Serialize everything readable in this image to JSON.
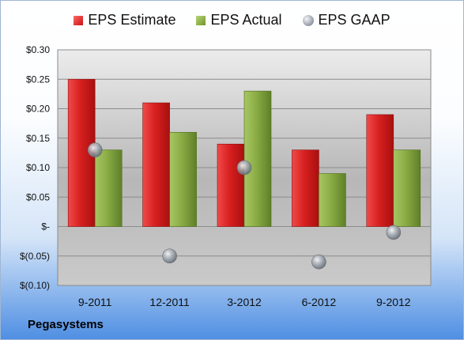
{
  "legend": {
    "estimate": "EPS Estimate",
    "actual": "EPS Actual",
    "gaap": "EPS GAAP"
  },
  "company": "Pegasystems",
  "colors": {
    "estimate": "#d42020",
    "actual": "#8db043",
    "gaap": "#9aa1aa"
  },
  "chart_data": {
    "type": "bar",
    "categories": [
      "9-2011",
      "12-2011",
      "3-2012",
      "6-2012",
      "9-2012"
    ],
    "series": [
      {
        "name": "EPS Estimate",
        "type": "bar",
        "values": [
          0.25,
          0.21,
          0.14,
          0.13,
          0.19
        ]
      },
      {
        "name": "EPS Actual",
        "type": "bar",
        "values": [
          0.13,
          0.16,
          0.23,
          0.09,
          0.13
        ]
      },
      {
        "name": "EPS GAAP",
        "type": "scatter",
        "values": [
          0.13,
          -0.05,
          0.1,
          -0.06,
          -0.01
        ]
      }
    ],
    "yticks": [
      "$(0.10)",
      "$(0.05)",
      "$-",
      "$0.05",
      "$0.10",
      "$0.15",
      "$0.20",
      "$0.25",
      "$0.30"
    ],
    "ylim": [
      -0.1,
      0.3
    ],
    "grid": true,
    "legend_position": "top"
  }
}
